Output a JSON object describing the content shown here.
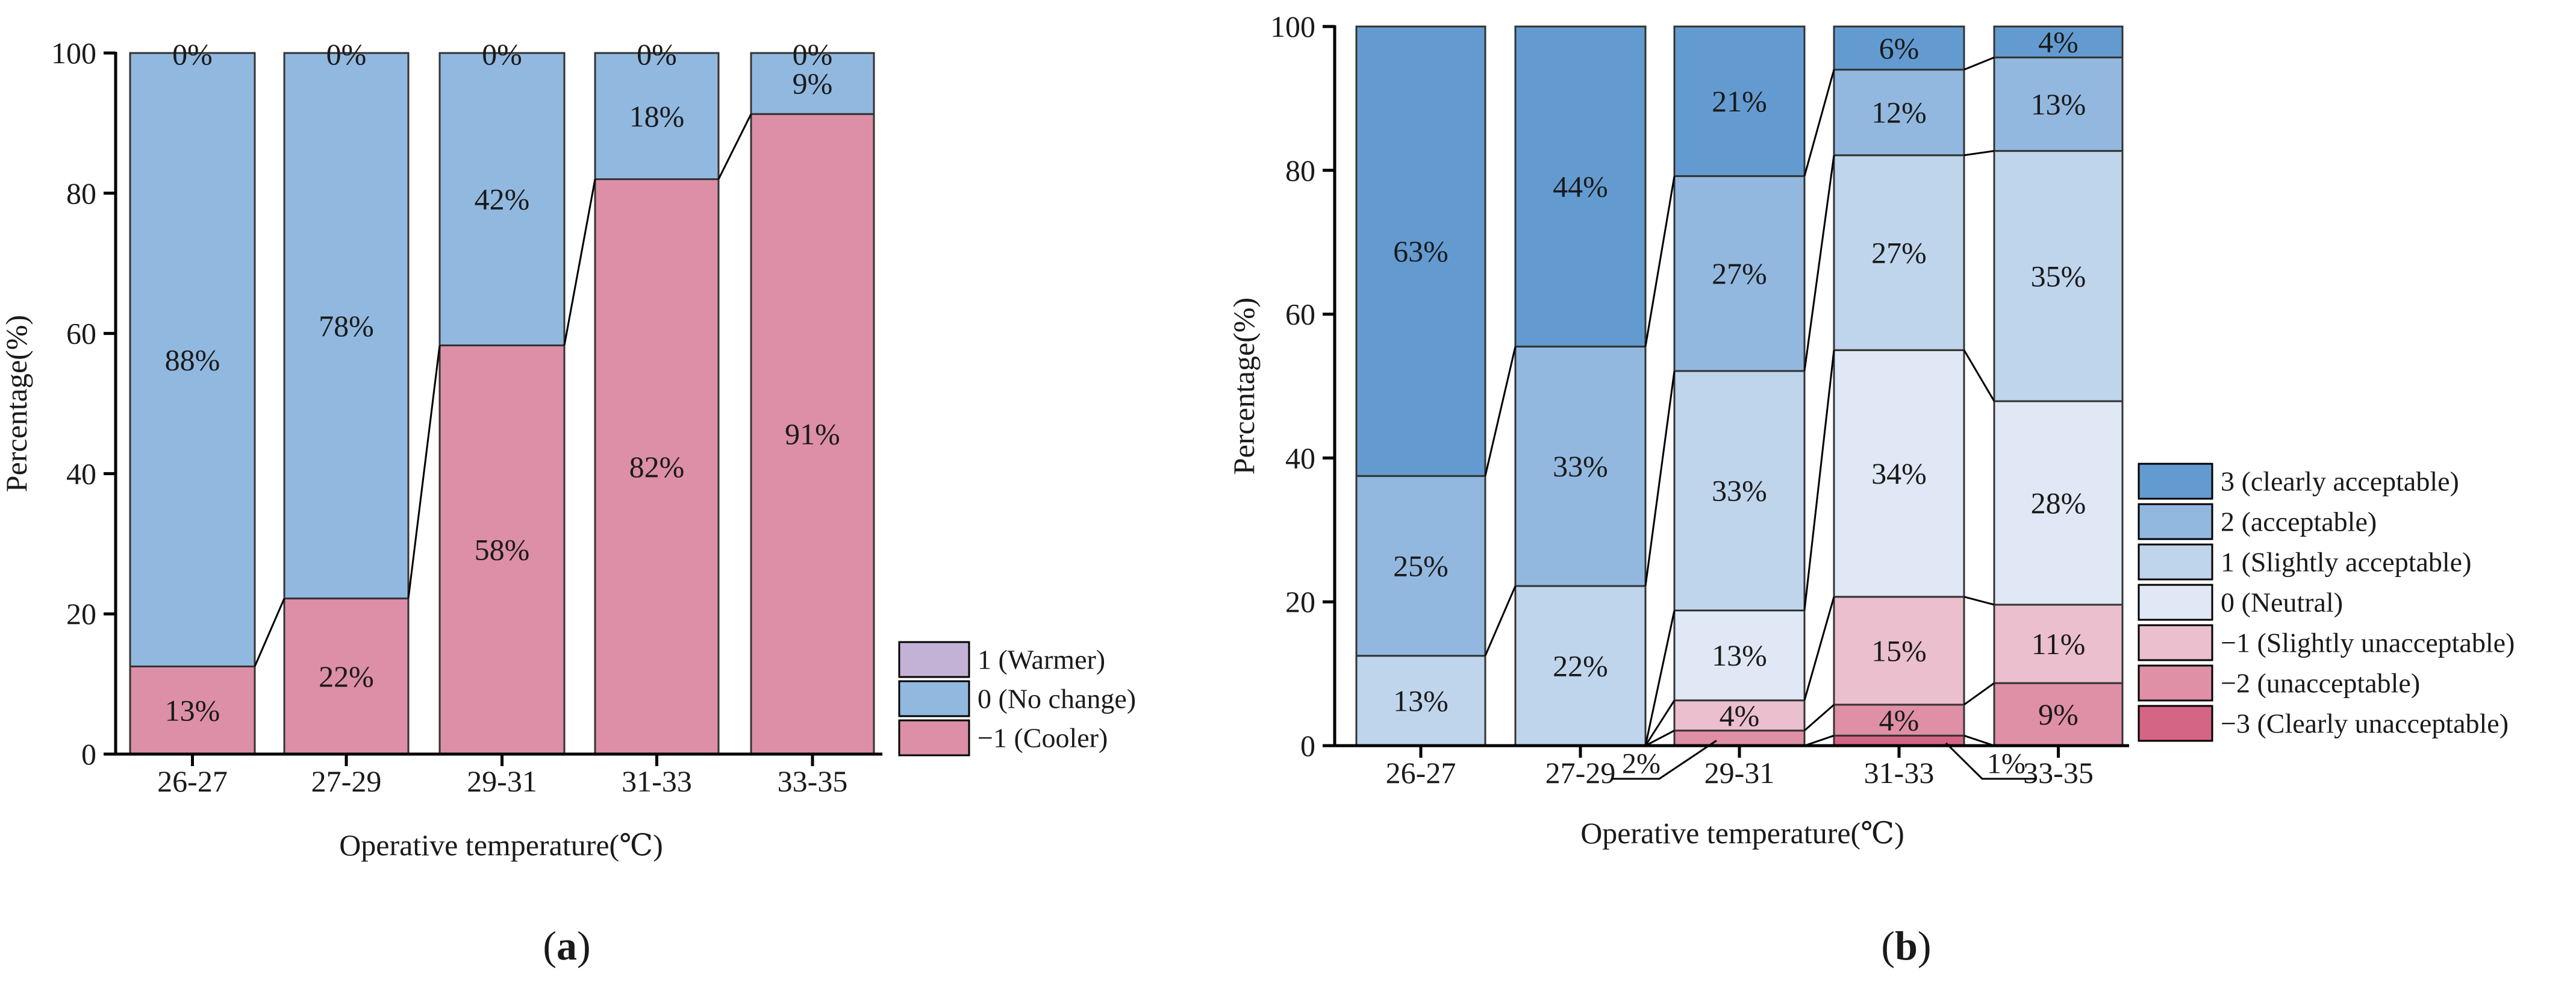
{
  "chart_data": [
    {
      "type": "bar",
      "subtype": "stacked-100",
      "panel_label": "(a)",
      "title": "",
      "xlabel": "Operative temperature(℃)",
      "ylabel": "Percentage(%)",
      "ylim": [
        0,
        100
      ],
      "yticks": [
        "0",
        "20",
        "40",
        "60",
        "80",
        "100"
      ],
      "categories": [
        "26-27",
        "27-29",
        "29-31",
        "31-33",
        "33-35"
      ],
      "legend_position": "bottom-right",
      "series": [
        {
          "name": "−1 (Cooler)",
          "color": "#dc8fa7",
          "values": [
            12.5,
            22.2,
            58.3,
            82,
            91.3
          ],
          "labels": [
            "13%",
            "22%",
            "58%",
            "82%",
            "91%"
          ]
        },
        {
          "name": "0 (No change)",
          "color": "#91b8df",
          "values": [
            87.5,
            77.8,
            41.7,
            18,
            8.7
          ],
          "labels": [
            "88%",
            "78%",
            "42%",
            "18%",
            "9%"
          ]
        },
        {
          "name": "1 (Warmer)",
          "color": "#c3b1d6",
          "values": [
            0,
            0,
            0,
            0,
            0
          ],
          "labels": [
            "0%",
            "0%",
            "0%",
            "0%",
            "0%"
          ]
        }
      ],
      "legend_order": [
        "1 (Warmer)",
        "0 (No change)",
        "−1 (Cooler)"
      ]
    },
    {
      "type": "bar",
      "subtype": "stacked-100",
      "panel_label": "(b)",
      "title": "",
      "xlabel": "Operative temperature(℃)",
      "ylabel": "Percentage(%)",
      "ylim": [
        0,
        100
      ],
      "yticks": [
        "0",
        "20",
        "40",
        "60",
        "80",
        "100"
      ],
      "categories": [
        "26-27",
        "27-29",
        "29-31",
        "31-33",
        "33-35"
      ],
      "legend_position": "right",
      "series": [
        {
          "name": "−3 (Clearly unacceptable)",
          "color": "#d56585",
          "values": [
            0,
            0,
            0,
            1.4,
            0
          ],
          "labels": [
            "",
            "",
            "",
            "1%",
            ""
          ]
        },
        {
          "name": "−2 (unacceptable)",
          "color": "#df8fa6",
          "values": [
            0,
            0,
            2.1,
            4.3,
            8.7
          ],
          "labels": [
            "",
            "",
            "2%",
            "4%",
            "9%"
          ]
        },
        {
          "name": "−1 (Slightly unacceptable)",
          "color": "#ebbfcd",
          "values": [
            0,
            0,
            4.2,
            15,
            10.9
          ],
          "labels": [
            "",
            "",
            "4%",
            "15%",
            "11%"
          ]
        },
        {
          "name": "0 (Neutral)",
          "color": "#dfe8f4",
          "values": [
            0,
            0,
            12.5,
            34.3,
            28.3
          ],
          "labels": [
            "",
            "",
            "13%",
            "34%",
            "28%"
          ]
        },
        {
          "name": "1 (Slightly acceptable)",
          "color": "#bfd5ec",
          "values": [
            12.5,
            22.2,
            33.3,
            27.1,
            34.8
          ],
          "labels": [
            "13%",
            "22%",
            "33%",
            "27%",
            "35%"
          ]
        },
        {
          "name": "2 (acceptable)",
          "color": "#92b8df",
          "values": [
            25,
            33.3,
            27.1,
            11.9,
            13
          ],
          "labels": [
            "25%",
            "33%",
            "27%",
            "12%",
            "13%"
          ]
        },
        {
          "name": "3 (clearly acceptable)",
          "color": "#639bd1",
          "values": [
            62.5,
            44.5,
            20.8,
            6,
            4.3
          ],
          "labels": [
            "63%",
            "44%",
            "21%",
            "6%",
            "4%"
          ]
        }
      ],
      "legend_order": [
        "3 (clearly acceptable)",
        "2 (acceptable)",
        "1 (Slightly acceptable)",
        "0 (Neutral)",
        "−1 (Slightly unacceptable)",
        "−2 (unacceptable)",
        "−3 (Clearly unacceptable)"
      ],
      "callouts": [
        {
          "label": "2%",
          "category": "29-31",
          "series": "−2 (unacceptable)"
        },
        {
          "label": "1%",
          "category": "31-33",
          "series": "−3 (Clearly unacceptable)"
        }
      ]
    }
  ]
}
